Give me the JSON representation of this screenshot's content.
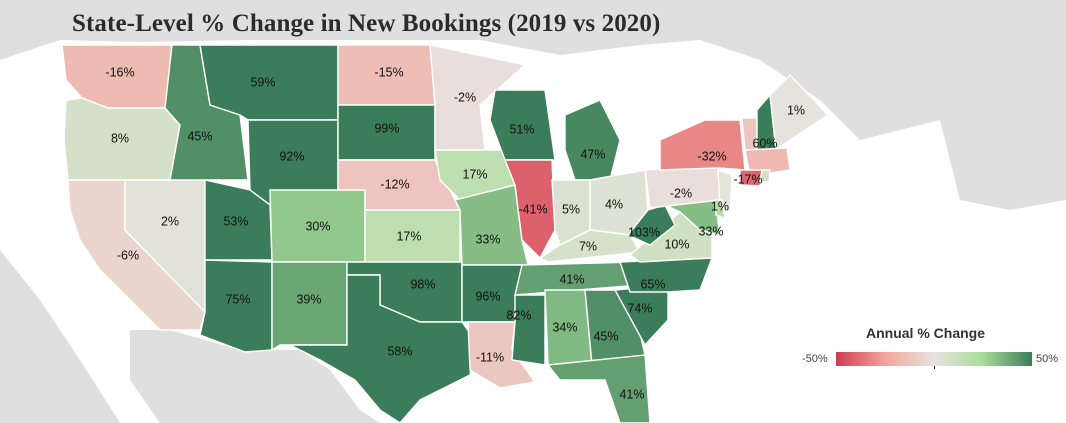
{
  "title": "State-Level % Change in New Bookings (2019 vs 2020)",
  "legend": {
    "title": "Annual % Change",
    "min_label": "-50%",
    "max_label": "50%",
    "min_value": -50,
    "max_value": 50,
    "colors": {
      "neg": "#cf3b52",
      "negmid": "#f2a49a",
      "mid": "#e8e3df",
      "posmid": "#a9db98",
      "pos": "#3b7d5a"
    }
  },
  "background": {
    "land": "#dfdfdf",
    "water": "#f2f2f2"
  },
  "states": [
    {
      "id": "WA",
      "label": "-16%",
      "value": -16
    },
    {
      "id": "OR",
      "label": "8%",
      "value": 8
    },
    {
      "id": "CA",
      "label": "-6%",
      "value": -6
    },
    {
      "id": "NV",
      "label": "2%",
      "value": 2
    },
    {
      "id": "ID",
      "label": "45%",
      "value": 45
    },
    {
      "id": "MT",
      "label": "59%",
      "value": 59
    },
    {
      "id": "WY",
      "label": "92%",
      "value": 92
    },
    {
      "id": "UT",
      "label": "53%",
      "value": 53
    },
    {
      "id": "AZ",
      "label": "75%",
      "value": 75
    },
    {
      "id": "CO",
      "label": "30%",
      "value": 30
    },
    {
      "id": "NM",
      "label": "39%",
      "value": 39
    },
    {
      "id": "ND",
      "label": "-15%",
      "value": -15
    },
    {
      "id": "SD",
      "label": "99%",
      "value": 99
    },
    {
      "id": "NE",
      "label": "-12%",
      "value": -12
    },
    {
      "id": "KS",
      "label": "17%",
      "value": 17
    },
    {
      "id": "OK",
      "label": "98%",
      "value": 98
    },
    {
      "id": "TX",
      "label": "58%",
      "value": 58
    },
    {
      "id": "MN",
      "label": "-2%",
      "value": -2
    },
    {
      "id": "IA",
      "label": "17%",
      "value": 17
    },
    {
      "id": "MO",
      "label": "33%",
      "value": 33
    },
    {
      "id": "AR",
      "label": "96%",
      "value": 96
    },
    {
      "id": "LA",
      "label": "-11%",
      "value": -11
    },
    {
      "id": "WI",
      "label": "51%",
      "value": 51
    },
    {
      "id": "IL",
      "label": "-41%",
      "value": -41
    },
    {
      "id": "MI",
      "label": "47%",
      "value": 47
    },
    {
      "id": "IN",
      "label": "5%",
      "value": 5
    },
    {
      "id": "OH",
      "label": "4%",
      "value": 4
    },
    {
      "id": "KY",
      "label": "7%",
      "value": 7
    },
    {
      "id": "TN",
      "label": "41%",
      "value": 41
    },
    {
      "id": "MS",
      "label": "82%",
      "value": 82
    },
    {
      "id": "AL",
      "label": "34%",
      "value": 34
    },
    {
      "id": "GA",
      "label": "45%",
      "value": 45
    },
    {
      "id": "FL",
      "label": "41%",
      "value": 41
    },
    {
      "id": "SC",
      "label": "74%",
      "value": 74
    },
    {
      "id": "NC",
      "label": "65%",
      "value": 65
    },
    {
      "id": "VA",
      "label": "10%",
      "value": 10
    },
    {
      "id": "WV",
      "label": "103%",
      "value": 103
    },
    {
      "id": "MD",
      "label": "33%",
      "value": 33
    },
    {
      "id": "PA",
      "label": "-2%",
      "value": -2
    },
    {
      "id": "NJ",
      "label": "1%",
      "value": 1
    },
    {
      "id": "NY",
      "label": "-32%",
      "value": -32
    },
    {
      "id": "VT",
      "label": "",
      "value": -12
    },
    {
      "id": "NH",
      "label": "60%",
      "value": 60
    },
    {
      "id": "ME",
      "label": "1%",
      "value": 1
    },
    {
      "id": "MA",
      "label": "-17%",
      "value": -17
    },
    {
      "id": "CT",
      "label": "",
      "value": -40
    },
    {
      "id": "RI",
      "label": "",
      "value": 10
    },
    {
      "id": "DE",
      "label": "",
      "value": 20
    }
  ]
}
